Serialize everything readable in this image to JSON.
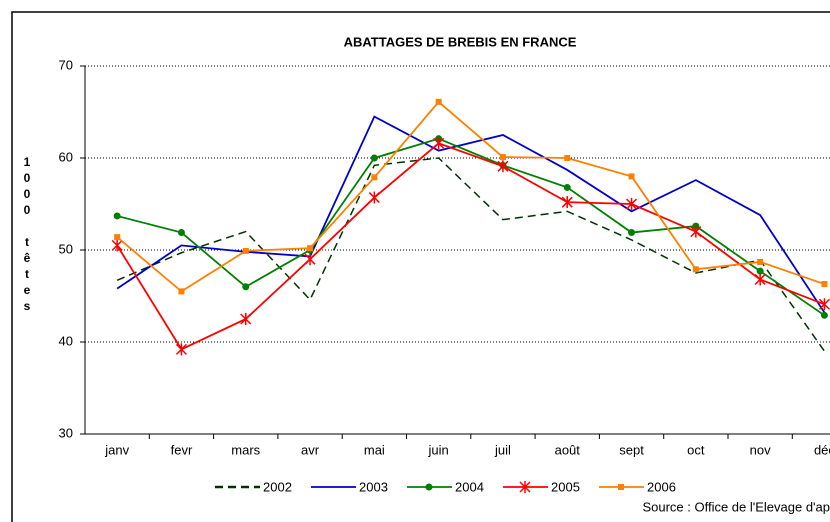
{
  "chart_data": {
    "type": "line",
    "title": "ABATTAGES DE BREBIS EN FRANCE",
    "y_label": "1000 têtes",
    "source": "Source : Office de l'Elevage d'ap",
    "categories": [
      "janv",
      "fevr",
      "mars",
      "avr",
      "mai",
      "juin",
      "juil",
      "août",
      "sept",
      "oct",
      "nov",
      "déc"
    ],
    "ylim": [
      30,
      70
    ],
    "yticks": [
      30,
      40,
      50,
      60,
      70
    ],
    "grid": true,
    "series": [
      {
        "name": "2002",
        "color": "#003300",
        "dash": true,
        "marker": "none",
        "values": [
          46.7,
          49.7,
          52,
          44.6,
          59.2,
          60,
          53.3,
          54.2,
          51.1,
          47.5,
          48.9,
          39
        ]
      },
      {
        "name": "2003",
        "color": "#0000cc",
        "marker": "none",
        "values": [
          45.8,
          50.5,
          49.8,
          49.3,
          64.5,
          60.8,
          62.5,
          58.7,
          54.2,
          57.6,
          53.8,
          43.2
        ]
      },
      {
        "name": "2004",
        "color": "#008000",
        "marker": "circle",
        "values": [
          53.7,
          51.9,
          46,
          50,
          60,
          62.1,
          59.2,
          56.8,
          51.9,
          52.6,
          47.7,
          42.9
        ]
      },
      {
        "name": "2005",
        "color": "#ff0000",
        "marker": "star",
        "values": [
          50.5,
          39.2,
          42.5,
          49,
          55.7,
          61.6,
          59.1,
          55.2,
          55,
          52,
          46.8,
          44.1
        ]
      },
      {
        "name": "2006",
        "color": "#ff8000",
        "marker": "square",
        "values": [
          51.4,
          45.5,
          49.9,
          50.2,
          57.9,
          66.1,
          60.1,
          60,
          58,
          47.9,
          48.7,
          46.3
        ]
      }
    ]
  }
}
